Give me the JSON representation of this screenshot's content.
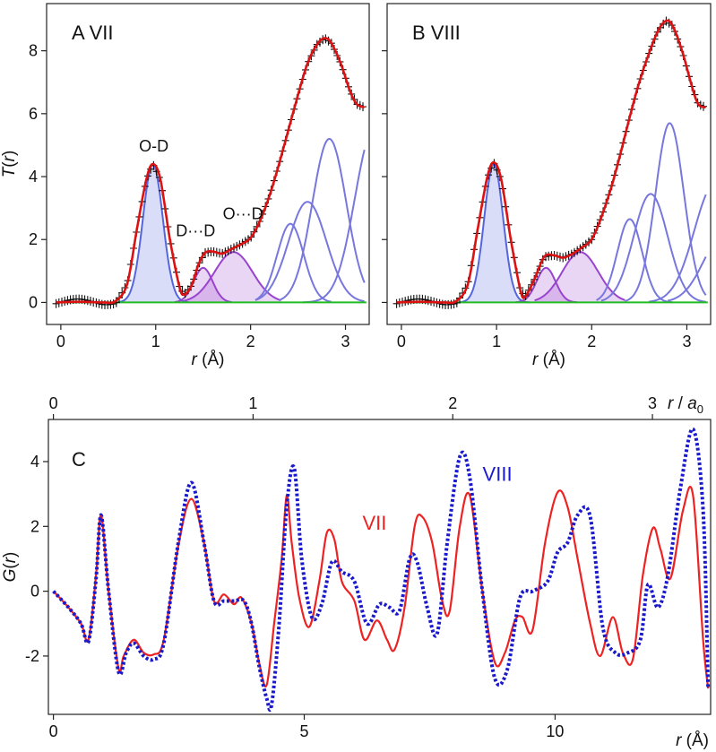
{
  "chart_data": [
    {
      "id": "A",
      "type": "line",
      "panel_label": "A VII",
      "xlabel_var": "r",
      "xlabel_unit": " (Å)",
      "ylabel_var": "T",
      "ylabel_arg": "r",
      "xlim": [
        -0.15,
        3.25
      ],
      "ylim": [
        -0.7,
        9.5
      ],
      "xticks": [
        0,
        1,
        2,
        3
      ],
      "yticks": [
        0,
        2,
        4,
        6,
        8
      ],
      "annotations": [
        {
          "text": "O-D",
          "x": 0.98,
          "y": 4.8
        },
        {
          "text": "D···D",
          "x": 1.42,
          "y": 2.1
        },
        {
          "text": "O···D",
          "x": 1.92,
          "y": 2.65
        }
      ],
      "peaks": [
        {
          "name": "O-D",
          "type": "filled",
          "center": 0.97,
          "height": 4.4,
          "sigma": 0.105,
          "color": "#5566dd",
          "xmin": 0.55,
          "xmax": 1.35
        },
        {
          "name": "D···D",
          "type": "filled",
          "center": 1.5,
          "height": 1.1,
          "sigma": 0.1,
          "color": "#9944cc",
          "xmin": 1.2,
          "xmax": 1.8
        },
        {
          "name": "O···D",
          "type": "filled",
          "center": 1.82,
          "height": 1.6,
          "sigma": 0.2,
          "color": "#9944cc",
          "xmin": 1.3,
          "xmax": 2.32
        },
        {
          "name": "p4",
          "type": "line",
          "center": 2.42,
          "height": 2.5,
          "sigma": 0.14,
          "color": "#7777dd",
          "xmin": 2.05,
          "xmax": 2.85
        },
        {
          "name": "p5",
          "type": "line",
          "center": 2.6,
          "height": 3.2,
          "sigma": 0.2,
          "color": "#7777dd",
          "xmin": 2.05,
          "xmax": 3.2
        },
        {
          "name": "p6",
          "type": "line",
          "center": 2.83,
          "height": 5.2,
          "sigma": 0.18,
          "color": "#7777dd",
          "xmin": 2.3,
          "xmax": 3.2
        },
        {
          "name": "p7",
          "type": "line",
          "center": 3.3,
          "height": 5.5,
          "sigma": 0.2,
          "color": "#7777dd",
          "xmin": 2.55,
          "xmax": 3.2
        }
      ],
      "total_curve": {
        "x": [
          -0.05,
          0.2,
          0.45,
          0.58,
          0.7,
          0.8,
          0.9,
          0.97,
          1.05,
          1.15,
          1.25,
          1.3,
          1.38,
          1.45,
          1.52,
          1.6,
          1.7,
          1.8,
          1.9,
          2.0,
          2.1,
          2.2,
          2.3,
          2.4,
          2.5,
          2.6,
          2.7,
          2.78,
          2.85,
          2.95,
          3.05,
          3.12,
          3.2
        ],
        "y": [
          0.0,
          0.02,
          0.0,
          0.05,
          0.6,
          2.3,
          3.9,
          4.4,
          3.9,
          2.0,
          0.5,
          0.25,
          0.55,
          1.2,
          1.58,
          1.62,
          1.55,
          1.7,
          1.85,
          2.05,
          2.6,
          3.4,
          4.4,
          5.5,
          6.6,
          7.6,
          8.2,
          8.4,
          8.25,
          7.6,
          6.7,
          6.3,
          6.2
        ]
      },
      "baseline": 0
    },
    {
      "id": "B",
      "type": "line",
      "panel_label": "B VIII",
      "xlabel_var": "r",
      "xlabel_unit": " (Å)",
      "xlim": [
        -0.15,
        3.25
      ],
      "ylim": [
        -0.7,
        9.5
      ],
      "xticks": [
        0,
        1,
        2,
        3
      ],
      "yticks": [
        0,
        2,
        4,
        6,
        8
      ],
      "peaks": [
        {
          "name": "O-D",
          "type": "filled",
          "center": 0.97,
          "height": 4.4,
          "sigma": 0.1,
          "color": "#5566dd",
          "xmin": 0.55,
          "xmax": 1.35
        },
        {
          "name": "D···D",
          "type": "filled",
          "center": 1.52,
          "height": 1.1,
          "sigma": 0.1,
          "color": "#9944cc",
          "xmin": 1.2,
          "xmax": 1.85
        },
        {
          "name": "O···D",
          "type": "filled",
          "center": 1.88,
          "height": 1.6,
          "sigma": 0.19,
          "color": "#9944cc",
          "xmin": 1.4,
          "xmax": 2.35
        },
        {
          "name": "p4",
          "type": "line",
          "center": 2.4,
          "height": 2.65,
          "sigma": 0.13,
          "color": "#7777dd",
          "xmin": 2.05,
          "xmax": 2.85
        },
        {
          "name": "p5",
          "type": "line",
          "center": 2.62,
          "height": 3.45,
          "sigma": 0.18,
          "color": "#7777dd",
          "xmin": 2.1,
          "xmax": 3.2
        },
        {
          "name": "p6",
          "type": "line",
          "center": 2.82,
          "height": 5.7,
          "sigma": 0.15,
          "color": "#7777dd",
          "xmin": 2.35,
          "xmax": 3.2
        },
        {
          "name": "p7",
          "type": "line",
          "center": 3.3,
          "height": 3.8,
          "sigma": 0.22,
          "color": "#7777dd",
          "xmin": 2.6,
          "xmax": 3.2
        },
        {
          "name": "p8",
          "type": "line",
          "center": 3.4,
          "height": 2.2,
          "sigma": 0.22,
          "color": "#7777dd",
          "xmin": 2.8,
          "xmax": 3.2
        }
      ],
      "total_curve": {
        "x": [
          -0.05,
          0.2,
          0.45,
          0.58,
          0.7,
          0.8,
          0.9,
          0.97,
          1.05,
          1.15,
          1.25,
          1.3,
          1.4,
          1.5,
          1.6,
          1.7,
          1.8,
          1.9,
          2.0,
          2.1,
          2.2,
          2.3,
          2.4,
          2.5,
          2.6,
          2.7,
          2.78,
          2.85,
          2.95,
          3.05,
          3.12,
          3.2
        ],
        "y": [
          0.0,
          0.02,
          0.0,
          0.05,
          0.6,
          2.3,
          3.95,
          4.45,
          3.9,
          2.0,
          0.4,
          0.18,
          0.75,
          1.45,
          1.5,
          1.42,
          1.55,
          1.75,
          2.0,
          2.7,
          3.6,
          4.7,
          5.9,
          7.0,
          7.9,
          8.65,
          8.95,
          8.8,
          8.0,
          6.9,
          6.3,
          6.2
        ]
      },
      "baseline": 0
    },
    {
      "id": "C",
      "type": "line",
      "panel_label": "C",
      "xlabel_var": "r",
      "xlabel_unit": " (Å)",
      "ylabel_var": "G",
      "ylabel_arg": "r",
      "top_axis_var": "r",
      "top_axis_sep": " / ",
      "top_axis_unit": "a",
      "top_axis_sub": "0",
      "top_ticks": [
        0,
        1,
        2,
        3
      ],
      "top_axis_scale": 3.98,
      "xlim": [
        -0.1,
        13.1
      ],
      "ylim": [
        -3.8,
        5.3
      ],
      "xticks": [
        0,
        5,
        10
      ],
      "yticks": [
        -2,
        0,
        2,
        4
      ],
      "series": [
        {
          "name": "VII",
          "color": "#ee2222",
          "style": "solid",
          "label_x": 6.4,
          "label_y": 1.9,
          "x": [
            0,
            0.3,
            0.55,
            0.7,
            0.85,
            0.95,
            1.1,
            1.3,
            1.4,
            1.6,
            1.8,
            2.0,
            2.2,
            2.5,
            2.75,
            3.0,
            3.2,
            3.4,
            3.6,
            3.75,
            3.95,
            4.1,
            4.25,
            4.4,
            4.55,
            4.65,
            4.75,
            4.9,
            5.1,
            5.3,
            5.45,
            5.6,
            5.75,
            6.0,
            6.2,
            6.45,
            6.65,
            6.8,
            7.0,
            7.2,
            7.35,
            7.55,
            7.75,
            7.9,
            8.1,
            8.3,
            8.55,
            8.8,
            9.0,
            9.2,
            9.35,
            9.55,
            9.8,
            10.05,
            10.25,
            10.45,
            10.7,
            10.9,
            11.15,
            11.35,
            11.55,
            11.75,
            11.95,
            12.1,
            12.3,
            12.55,
            12.75,
            12.95,
            13.05
          ],
          "y": [
            0,
            -0.5,
            -1.0,
            -1.5,
            0.5,
            2.35,
            0.0,
            -2.4,
            -2.0,
            -1.5,
            -1.9,
            -1.95,
            -1.5,
            1.5,
            2.85,
            1.5,
            -0.3,
            -0.1,
            -0.4,
            -0.2,
            -1.0,
            -2.2,
            -2.9,
            -1.0,
            1.0,
            2.95,
            1.5,
            -0.2,
            -1.1,
            0.3,
            1.8,
            1.6,
            0.3,
            -0.3,
            -1.5,
            -0.9,
            -1.5,
            -1.8,
            -0.5,
            2.0,
            2.3,
            1.5,
            -0.3,
            -0.6,
            2.0,
            2.95,
            0.0,
            -2.2,
            -1.9,
            -0.9,
            -0.8,
            -1.2,
            1.5,
            3.05,
            2.6,
            1.0,
            -1.0,
            -2.0,
            -0.8,
            -1.9,
            -2.1,
            0.5,
            1.95,
            1.3,
            0.4,
            2.5,
            2.95,
            -1.5,
            -3.0
          ]
        },
        {
          "name": "VIII",
          "color": "#1a1acc",
          "style": "dotted",
          "label_x": 8.85,
          "label_y": 3.4,
          "x": [
            0,
            0.3,
            0.55,
            0.7,
            0.85,
            0.95,
            1.1,
            1.3,
            1.45,
            1.6,
            1.8,
            2.0,
            2.2,
            2.5,
            2.75,
            3.0,
            3.2,
            3.4,
            3.6,
            3.8,
            3.95,
            4.1,
            4.25,
            4.35,
            4.5,
            4.65,
            4.8,
            4.95,
            5.15,
            5.35,
            5.55,
            5.75,
            6.0,
            6.25,
            6.5,
            6.7,
            6.9,
            7.1,
            7.25,
            7.45,
            7.65,
            7.85,
            8.1,
            8.3,
            8.55,
            8.8,
            9.05,
            9.3,
            9.55,
            9.85,
            10.05,
            10.25,
            10.45,
            10.7,
            10.95,
            11.2,
            11.45,
            11.7,
            11.85,
            12.05,
            12.25,
            12.5,
            12.75,
            12.95,
            13.05
          ],
          "y": [
            0,
            -0.5,
            -1.0,
            -1.55,
            0.4,
            2.35,
            0.0,
            -2.5,
            -1.9,
            -1.6,
            -2.0,
            -2.1,
            -1.6,
            1.6,
            3.35,
            1.5,
            -0.3,
            -0.3,
            -0.3,
            -0.3,
            -1.0,
            -2.3,
            -3.3,
            -3.5,
            -1.0,
            2.6,
            3.8,
            1.0,
            -0.8,
            -0.4,
            0.9,
            0.6,
            0.3,
            -1.0,
            -0.4,
            -0.5,
            -0.6,
            1.0,
            0.9,
            -0.5,
            -1.3,
            1.5,
            4.15,
            3.5,
            0.0,
            -2.7,
            -2.4,
            -0.2,
            0.0,
            0.3,
            1.2,
            1.5,
            2.35,
            2.3,
            -1.1,
            -1.9,
            -1.9,
            -1.5,
            0.2,
            -0.5,
            0.5,
            3.2,
            5.0,
            2.5,
            -3.0
          ]
        }
      ]
    }
  ]
}
